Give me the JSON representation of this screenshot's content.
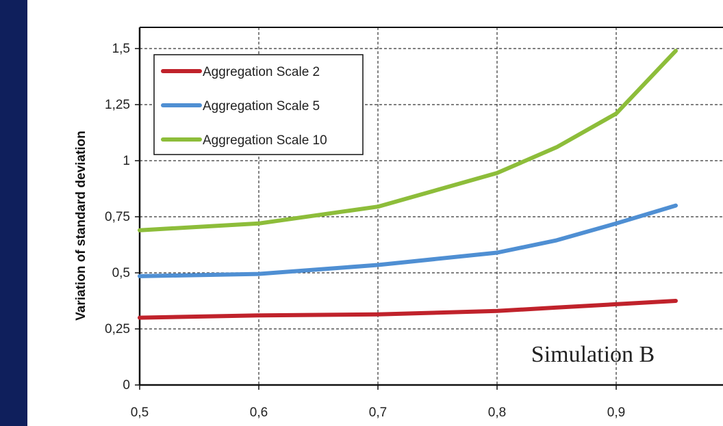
{
  "colors": {
    "stripe": "#0f1f5c",
    "scale2": "#c0222b",
    "scale5": "#4f8fd3",
    "scale10": "#8dbd3a",
    "grid": "#333333",
    "axis": "#111111"
  },
  "chart_data": {
    "type": "line",
    "title": "",
    "xlabel": "",
    "ylabel": "Variation of standard deviation",
    "xlim": [
      0.5,
      1.0
    ],
    "ylim": [
      0,
      1.6
    ],
    "x_ticks": [
      0.5,
      0.6,
      0.7,
      0.8,
      0.9
    ],
    "x_tick_labels": [
      "0,5",
      "0,6",
      "0,7",
      "0,8",
      "0,9"
    ],
    "y_ticks": [
      0,
      0.25,
      0.5,
      0.75,
      1,
      1.25,
      1.5
    ],
    "y_tick_labels": [
      "0",
      "0,25",
      "0,5",
      "0,75",
      "1",
      "1,25",
      "1,5"
    ],
    "grid": true,
    "legend_position": "top-left",
    "annotation": "Simulation B",
    "series": [
      {
        "name": "Aggregation Scale 2",
        "x": [
          0.5,
          0.6,
          0.7,
          0.8,
          0.85,
          0.9,
          0.95
        ],
        "y": [
          0.3,
          0.31,
          0.315,
          0.33,
          0.345,
          0.36,
          0.375
        ]
      },
      {
        "name": "Aggregation Scale 5",
        "x": [
          0.5,
          0.6,
          0.7,
          0.8,
          0.85,
          0.9,
          0.95
        ],
        "y": [
          0.485,
          0.495,
          0.535,
          0.59,
          0.645,
          0.72,
          0.8
        ]
      },
      {
        "name": "Aggregation Scale 10",
        "x": [
          0.5,
          0.6,
          0.7,
          0.8,
          0.85,
          0.9,
          0.95
        ],
        "y": [
          0.69,
          0.72,
          0.795,
          0.945,
          1.06,
          1.21,
          1.49
        ]
      }
    ]
  }
}
